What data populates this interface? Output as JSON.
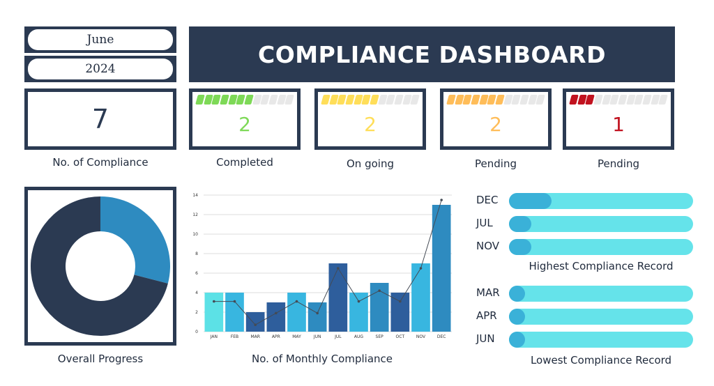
{
  "header": {
    "month": "June",
    "year": "2024",
    "title": "COMPLIANCE DASHBOARD"
  },
  "summary": {
    "total_value": "7",
    "total_label": "No. of Compliance"
  },
  "status_cards": [
    {
      "value": "2",
      "label": "Completed",
      "color": "#7ed957",
      "filled": 7,
      "segments": 12
    },
    {
      "value": "2",
      "label": "On going",
      "color": "#ffde59",
      "filled": 7,
      "segments": 12
    },
    {
      "value": "2",
      "label": "Pending",
      "color": "#ffbd59",
      "filled": 7,
      "segments": 12
    },
    {
      "value": "1",
      "label": "Pending",
      "color": "#c1121f",
      "filled": 3,
      "segments": 12
    }
  ],
  "overall_progress": {
    "label": "Overall Progress",
    "completed_fraction": 0.29,
    "colors": {
      "completed": "#2e8bc0",
      "remaining": "#2b3a52"
    }
  },
  "monthly": {
    "caption": "No. of Monthly Compliance",
    "chart_data": {
      "type": "bar",
      "categories": [
        "JAN",
        "FEB",
        "MAR",
        "APR",
        "MAY",
        "JUN",
        "JUL",
        "AUG",
        "SEP",
        "OCT",
        "NOV",
        "DEC"
      ],
      "values": [
        4,
        4,
        2,
        3,
        4,
        3,
        7,
        4,
        5,
        4,
        7,
        13
      ],
      "line_values": [
        3.1,
        3.1,
        0.7,
        1.9,
        3.1,
        1.9,
        6.5,
        3.1,
        4.2,
        3.1,
        6.5,
        13.5
      ],
      "yticks": [
        "0",
        "2",
        "4",
        "6",
        "8",
        "10",
        "12",
        "14"
      ],
      "ylim": [
        0,
        14
      ],
      "grid": true,
      "bar_colors": [
        "#5ce1e6",
        "#38b6e0",
        "#2e5e9c",
        "#2e5e9c",
        "#38b6e0",
        "#2e8bc0",
        "#2e5e9c",
        "#38b6e0",
        "#2e8bc0",
        "#2e5e9c",
        "#38b6e0",
        "#2e8bc0"
      ]
    }
  },
  "highest": {
    "caption": "Highest Compliance Record",
    "items": [
      {
        "month": "DEC",
        "fraction": 0.23
      },
      {
        "month": "JUL",
        "fraction": 0.12
      },
      {
        "month": "NOV",
        "fraction": 0.12
      }
    ]
  },
  "lowest": {
    "caption": "Lowest Compliance Record",
    "items": [
      {
        "month": "MAR",
        "fraction": 0.08
      },
      {
        "month": "APR",
        "fraction": 0.08
      },
      {
        "month": "JUN",
        "fraction": 0.08
      }
    ]
  }
}
